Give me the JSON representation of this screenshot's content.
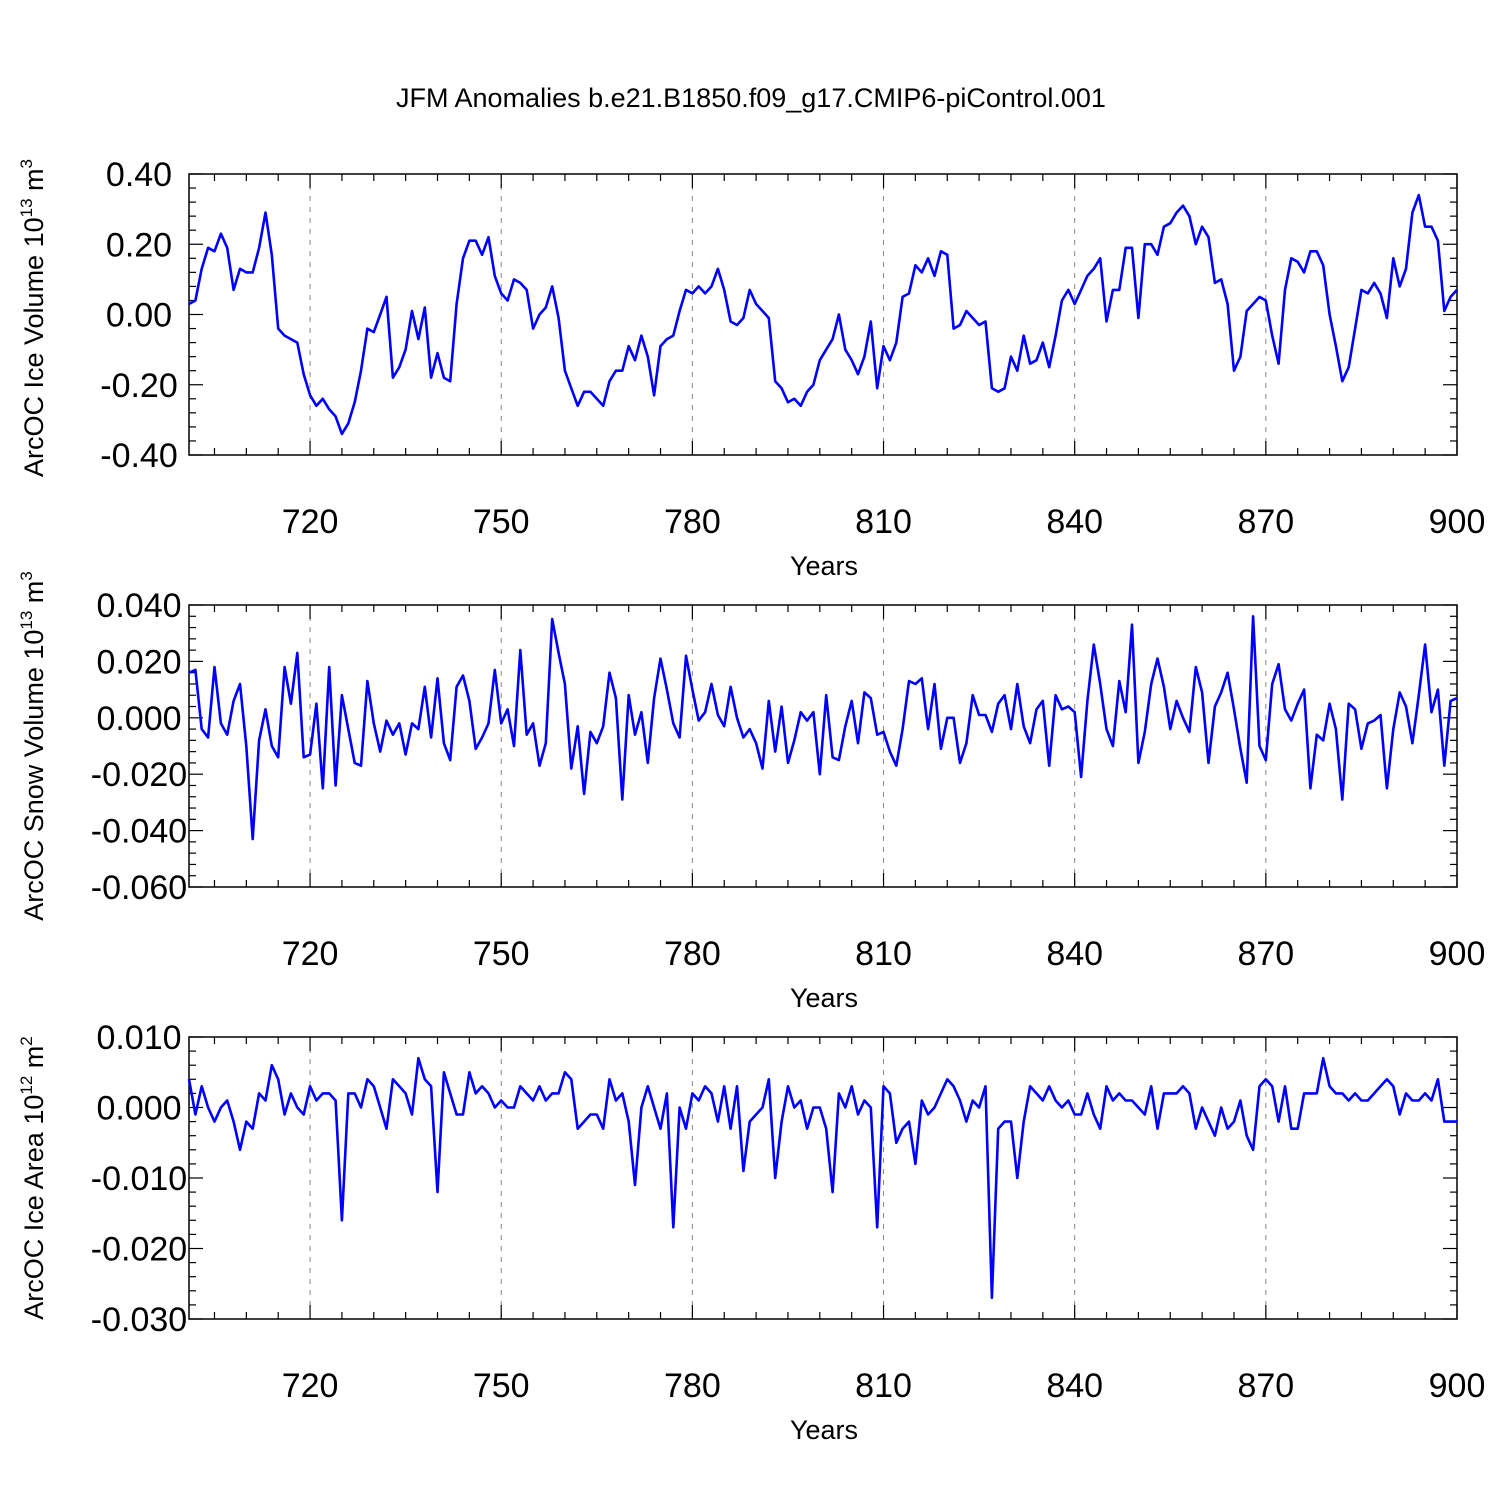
{
  "title": "JFM Anomalies b.e21.B1850.f09_g17.CMIP6-piControl.001",
  "colors": {
    "series": "#0000ff",
    "axes": "#000000",
    "grid": "#888888"
  },
  "chart_data": [
    {
      "type": "line",
      "ylabel": "ArcOC Ice Volume 10",
      "yunit_exp": "13",
      "yunit_tail": " m",
      "yunit_pow": "3",
      "xlabel": "Years",
      "xlim": [
        701,
        900
      ],
      "ylim": [
        -0.4,
        0.4
      ],
      "yticks": [
        -0.4,
        -0.2,
        0.0,
        0.2,
        0.4
      ],
      "ytick_labels": [
        "-0.40",
        "-0.20",
        "0.00",
        "0.20",
        "0.40"
      ],
      "xticks": [
        720,
        750,
        780,
        810,
        840,
        870,
        900
      ],
      "xtick_labels": [
        "720",
        "750",
        "780",
        "810",
        "840",
        "870",
        "900"
      ],
      "grid": "dashed vertical at major x ticks",
      "series": [
        {
          "x_start": 701,
          "x_step": 1,
          "values": [
            0.03,
            0.04,
            0.13,
            0.19,
            0.18,
            0.23,
            0.19,
            0.07,
            0.13,
            0.12,
            0.12,
            0.19,
            0.29,
            0.17,
            -0.04,
            -0.06,
            -0.07,
            -0.08,
            -0.17,
            -0.23,
            -0.26,
            -0.24,
            -0.27,
            -0.29,
            -0.34,
            -0.31,
            -0.25,
            -0.16,
            -0.04,
            -0.05,
            0.0,
            0.05,
            -0.18,
            -0.15,
            -0.1,
            0.01,
            -0.07,
            0.02,
            -0.18,
            -0.11,
            -0.18,
            -0.19,
            0.03,
            0.16,
            0.21,
            0.21,
            0.17,
            0.22,
            0.11,
            0.06,
            0.04,
            0.1,
            0.09,
            0.07,
            -0.04,
            0.0,
            0.02,
            0.08,
            -0.01,
            -0.16,
            -0.21,
            -0.26,
            -0.22,
            -0.22,
            -0.24,
            -0.26,
            -0.19,
            -0.16,
            -0.16,
            -0.09,
            -0.13,
            -0.06,
            -0.12,
            -0.23,
            -0.09,
            -0.07,
            -0.06,
            0.01,
            0.07,
            0.06,
            0.08,
            0.06,
            0.08,
            0.13,
            0.07,
            -0.02,
            -0.03,
            -0.01,
            0.07,
            0.03,
            0.01,
            -0.01,
            -0.19,
            -0.21,
            -0.25,
            -0.24,
            -0.26,
            -0.22,
            -0.2,
            -0.13,
            -0.1,
            -0.07,
            0.0,
            -0.1,
            -0.13,
            -0.17,
            -0.12,
            -0.02,
            -0.21,
            -0.09,
            -0.13,
            -0.08,
            0.05,
            0.06,
            0.14,
            0.12,
            0.16,
            0.11,
            0.18,
            0.17,
            -0.04,
            -0.03,
            0.01,
            -0.01,
            -0.03,
            -0.02,
            -0.21,
            -0.22,
            -0.21,
            -0.12,
            -0.16,
            -0.06,
            -0.14,
            -0.13,
            -0.08,
            -0.15,
            -0.06,
            0.04,
            0.07,
            0.03,
            0.07,
            0.11,
            0.13,
            0.16,
            -0.02,
            0.07,
            0.07,
            0.19,
            0.19,
            -0.01,
            0.2,
            0.2,
            0.17,
            0.25,
            0.26,
            0.29,
            0.31,
            0.28,
            0.2,
            0.25,
            0.22,
            0.09,
            0.1,
            0.03,
            -0.16,
            -0.12,
            0.01,
            0.03,
            0.05,
            0.04,
            -0.06,
            -0.14,
            0.07,
            0.16,
            0.15,
            0.12,
            0.18,
            0.18,
            0.14,
            0.0,
            -0.09,
            -0.19,
            -0.15,
            -0.04,
            0.07,
            0.06,
            0.09,
            0.06,
            -0.01,
            0.16,
            0.08,
            0.13,
            0.29,
            0.34,
            0.25,
            0.25,
            0.21,
            0.01,
            0.05,
            0.07
          ]
        }
      ]
    },
    {
      "type": "line",
      "ylabel": "ArcOC Snow Volume 10",
      "yunit_exp": "13",
      "yunit_tail": " m",
      "yunit_pow": "3",
      "xlabel": "Years",
      "xlim": [
        701,
        900
      ],
      "ylim": [
        -0.06,
        0.04
      ],
      "yticks": [
        -0.06,
        -0.04,
        -0.02,
        0.0,
        0.02,
        0.04
      ],
      "ytick_labels": [
        "-0.060",
        "-0.040",
        "-0.020",
        "0.000",
        "0.020",
        "0.040"
      ],
      "xticks": [
        720,
        750,
        780,
        810,
        840,
        870,
        900
      ],
      "xtick_labels": [
        "720",
        "750",
        "780",
        "810",
        "840",
        "870",
        "900"
      ],
      "grid": "dashed vertical at major x ticks",
      "series": [
        {
          "x_start": 701,
          "x_step": 1,
          "values": [
            0.016,
            0.017,
            -0.004,
            -0.007,
            0.018,
            -0.002,
            -0.006,
            0.006,
            0.012,
            -0.01,
            -0.043,
            -0.008,
            0.003,
            -0.01,
            -0.014,
            0.018,
            0.005,
            0.023,
            -0.014,
            -0.013,
            0.005,
            -0.025,
            0.018,
            -0.024,
            0.008,
            -0.004,
            -0.016,
            -0.017,
            0.013,
            -0.002,
            -0.012,
            -0.001,
            -0.006,
            -0.002,
            -0.013,
            -0.002,
            -0.004,
            0.011,
            -0.007,
            0.014,
            -0.009,
            -0.015,
            0.011,
            0.015,
            0.006,
            -0.011,
            -0.007,
            -0.002,
            0.017,
            -0.002,
            0.003,
            -0.01,
            0.024,
            -0.006,
            -0.002,
            -0.017,
            -0.009,
            0.035,
            0.023,
            0.012,
            -0.018,
            -0.003,
            -0.027,
            -0.005,
            -0.009,
            -0.003,
            0.016,
            0.007,
            -0.029,
            0.008,
            -0.006,
            0.002,
            -0.016,
            0.007,
            0.021,
            0.01,
            -0.002,
            -0.007,
            0.022,
            0.01,
            -0.001,
            0.002,
            0.012,
            0.001,
            -0.003,
            0.011,
            0.0,
            -0.007,
            -0.004,
            -0.009,
            -0.018,
            0.006,
            -0.012,
            0.004,
            -0.016,
            -0.008,
            0.002,
            -0.001,
            0.002,
            -0.02,
            0.008,
            -0.014,
            -0.015,
            -0.003,
            0.006,
            -0.009,
            0.009,
            0.007,
            -0.006,
            -0.005,
            -0.012,
            -0.017,
            -0.004,
            0.013,
            0.012,
            0.014,
            -0.004,
            0.012,
            -0.011,
            0.0,
            0.0,
            -0.016,
            -0.009,
            0.008,
            0.001,
            0.001,
            -0.005,
            0.005,
            0.008,
            -0.004,
            0.012,
            -0.003,
            -0.009,
            0.003,
            0.006,
            -0.017,
            0.008,
            0.003,
            0.004,
            0.002,
            -0.021,
            0.006,
            0.026,
            0.012,
            -0.004,
            -0.01,
            0.013,
            0.002,
            0.033,
            -0.016,
            -0.005,
            0.012,
            0.021,
            0.011,
            -0.004,
            0.006,
            0.0,
            -0.005,
            0.018,
            0.009,
            -0.016,
            0.004,
            0.009,
            0.016,
            0.003,
            -0.011,
            -0.023,
            0.036,
            -0.01,
            -0.015,
            0.012,
            0.019,
            0.003,
            -0.001,
            0.005,
            0.01,
            -0.025,
            -0.006,
            -0.008,
            0.005,
            -0.004,
            -0.029,
            0.005,
            0.003,
            -0.011,
            -0.002,
            -0.001,
            0.001,
            -0.025,
            -0.004,
            0.009,
            0.004,
            -0.009,
            0.008,
            0.026,
            0.002,
            0.01,
            -0.017,
            0.006,
            0.007
          ]
        }
      ]
    },
    {
      "type": "line",
      "ylabel": "ArcOC Ice Area 10",
      "yunit_exp": "12",
      "yunit_tail": " m",
      "yunit_pow": "2",
      "xlabel": "Years",
      "xlim": [
        701,
        900
      ],
      "ylim": [
        -0.03,
        0.01
      ],
      "yticks": [
        -0.03,
        -0.02,
        -0.01,
        0.0,
        0.01
      ],
      "ytick_labels": [
        "-0.030",
        "-0.020",
        "-0.010",
        "0.000",
        "0.010"
      ],
      "xticks": [
        720,
        750,
        780,
        810,
        840,
        870,
        900
      ],
      "xtick_labels": [
        "720",
        "750",
        "780",
        "810",
        "840",
        "870",
        "900"
      ],
      "grid": "dashed vertical at major x ticks",
      "series": [
        {
          "x_start": 701,
          "x_step": 1,
          "values": [
            0.004,
            -0.001,
            0.003,
            0.0,
            -0.002,
            0.0,
            0.001,
            -0.002,
            -0.006,
            -0.002,
            -0.003,
            0.002,
            0.001,
            0.006,
            0.004,
            -0.001,
            0.002,
            0.0,
            -0.001,
            0.003,
            0.001,
            0.002,
            0.002,
            0.001,
            -0.016,
            0.002,
            0.002,
            0.0,
            0.004,
            0.003,
            0.0,
            -0.003,
            0.004,
            0.003,
            0.002,
            -0.001,
            0.007,
            0.004,
            0.003,
            -0.012,
            0.005,
            0.002,
            -0.001,
            -0.001,
            0.005,
            0.002,
            0.003,
            0.002,
            0.0,
            0.001,
            0.0,
            0.0,
            0.003,
            0.002,
            0.001,
            0.003,
            0.001,
            0.002,
            0.002,
            0.005,
            0.004,
            -0.003,
            -0.002,
            -0.001,
            -0.001,
            -0.003,
            0.004,
            0.001,
            0.002,
            -0.002,
            -0.011,
            0.0,
            0.003,
            0.0,
            -0.003,
            0.002,
            -0.017,
            0.0,
            -0.003,
            0.002,
            0.001,
            0.003,
            0.002,
            -0.002,
            0.003,
            -0.003,
            0.003,
            -0.009,
            -0.002,
            -0.001,
            0.0,
            0.004,
            -0.01,
            -0.002,
            0.003,
            0.0,
            0.001,
            -0.003,
            0.0,
            0.0,
            -0.003,
            -0.012,
            0.002,
            0.0,
            0.003,
            -0.001,
            0.001,
            0.0,
            -0.017,
            0.003,
            0.002,
            -0.005,
            -0.003,
            -0.002,
            -0.008,
            0.001,
            -0.001,
            0.0,
            0.002,
            0.004,
            0.003,
            0.001,
            -0.002,
            0.001,
            0.0,
            0.003,
            -0.027,
            -0.003,
            -0.002,
            -0.002,
            -0.01,
            -0.002,
            0.003,
            0.002,
            0.001,
            0.003,
            0.001,
            0.0,
            0.001,
            -0.001,
            -0.001,
            0.002,
            -0.001,
            -0.003,
            0.003,
            0.001,
            0.002,
            0.001,
            0.001,
            0.0,
            -0.001,
            0.003,
            -0.003,
            0.002,
            0.002,
            0.002,
            0.003,
            0.002,
            -0.003,
            0.0,
            -0.002,
            -0.004,
            0.0,
            -0.003,
            -0.002,
            0.001,
            -0.004,
            -0.006,
            0.003,
            0.004,
            0.003,
            -0.002,
            0.003,
            -0.003,
            -0.003,
            0.002,
            0.002,
            0.002,
            0.007,
            0.003,
            0.002,
            0.002,
            0.001,
            0.002,
            0.001,
            0.001,
            0.002,
            0.003,
            0.004,
            0.003,
            -0.001,
            0.002,
            0.001,
            0.001,
            0.002,
            0.001,
            0.004,
            -0.002,
            -0.002,
            -0.002
          ]
        }
      ]
    }
  ]
}
